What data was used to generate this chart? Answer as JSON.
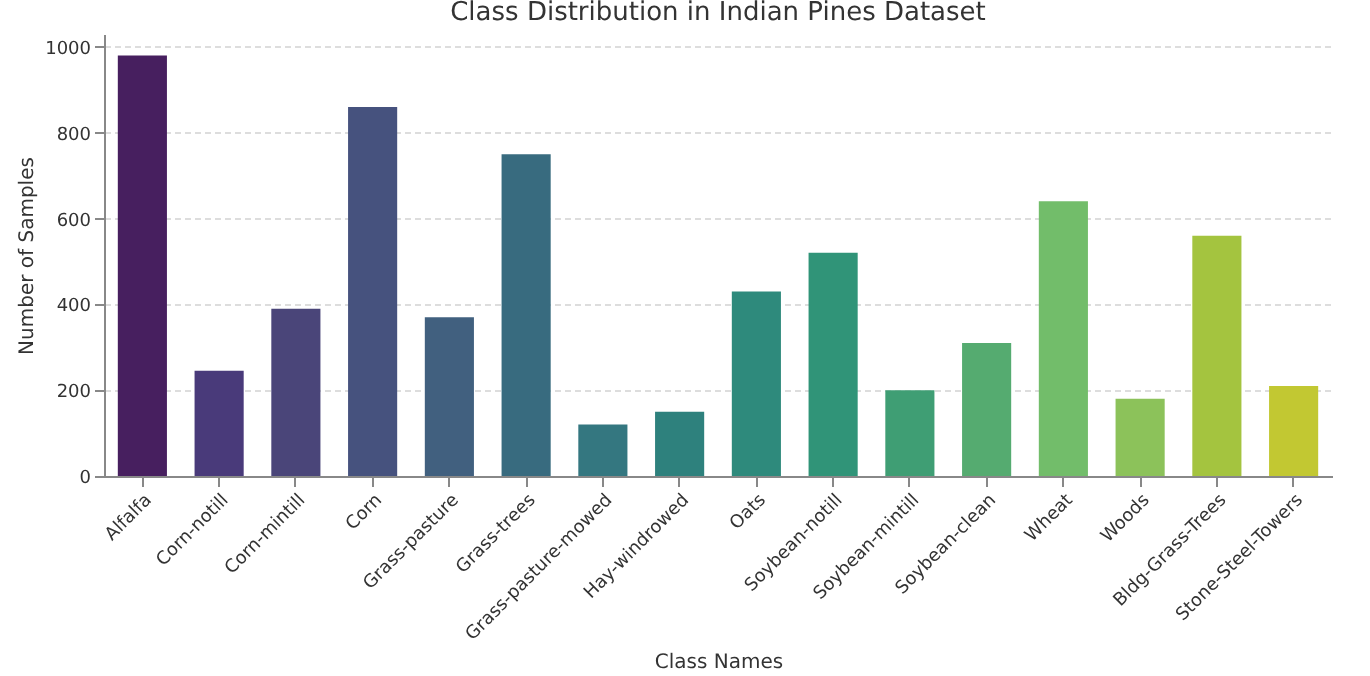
{
  "chart_data": {
    "type": "bar",
    "title": "Class Distribution in Indian Pines Dataset",
    "xlabel": "Class Names",
    "ylabel": "Number of Samples",
    "categories": [
      "Alfalfa",
      "Corn-notill",
      "Corn-mintill",
      "Corn",
      "Grass-pasture",
      "Grass-trees",
      "Grass-pasture-mowed",
      "Hay-windrowed",
      "Oats",
      "Soybean-notill",
      "Soybean-mintill",
      "Soybean-clean",
      "Wheat",
      "Woods",
      "Bldg-Grass-Trees",
      "Stone-Steel-Towers"
    ],
    "values": [
      980,
      245,
      390,
      860,
      370,
      750,
      120,
      150,
      430,
      520,
      200,
      310,
      640,
      180,
      560,
      210
    ],
    "colors": [
      "#471f5f",
      "#493a7a",
      "#4a4579",
      "#46527e",
      "#41607f",
      "#386b7f",
      "#347780",
      "#2e817d",
      "#2e8a7c",
      "#309478",
      "#3f9e74",
      "#55ab70",
      "#72bd6a",
      "#8cc25a",
      "#a4c43f",
      "#c2c832"
    ],
    "ylim": [
      0,
      1030
    ],
    "yticks": [
      0,
      200,
      400,
      600,
      800,
      1000
    ],
    "grid": "y"
  }
}
